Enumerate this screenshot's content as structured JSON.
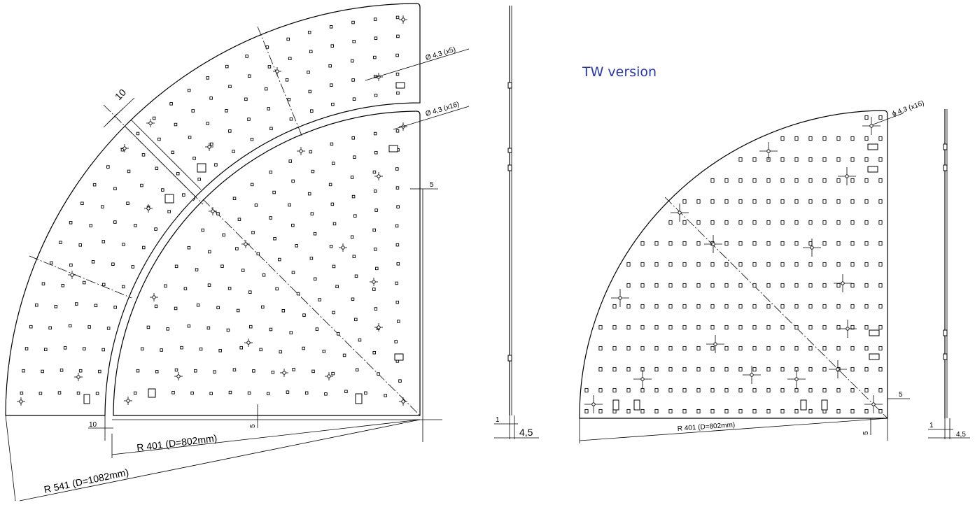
{
  "title": "TW version",
  "left_view": {
    "hole_callout_outer": "Ø 4,3 (x5)",
    "hole_callout_inner": "Ø 4,3 (x16)",
    "gap_dim": "10",
    "edge_dim": "5",
    "bottom_gap_dim": "10",
    "bottom_offset_dim": "5",
    "inner_radius": "R 401 (D=802mm)",
    "outer_radius": "R 541  (D=1082mm)"
  },
  "left_side_view": {
    "dim_a": "1",
    "dim_b": "4,5"
  },
  "right_view": {
    "hole_callout": "ϕ 4,3  (x16)",
    "edge_dim": "5",
    "bottom_dim": "5",
    "radius": "R 401  (D=802mm)"
  },
  "right_side_view": {
    "dim_a": "1",
    "dim_b": "4,5"
  }
}
